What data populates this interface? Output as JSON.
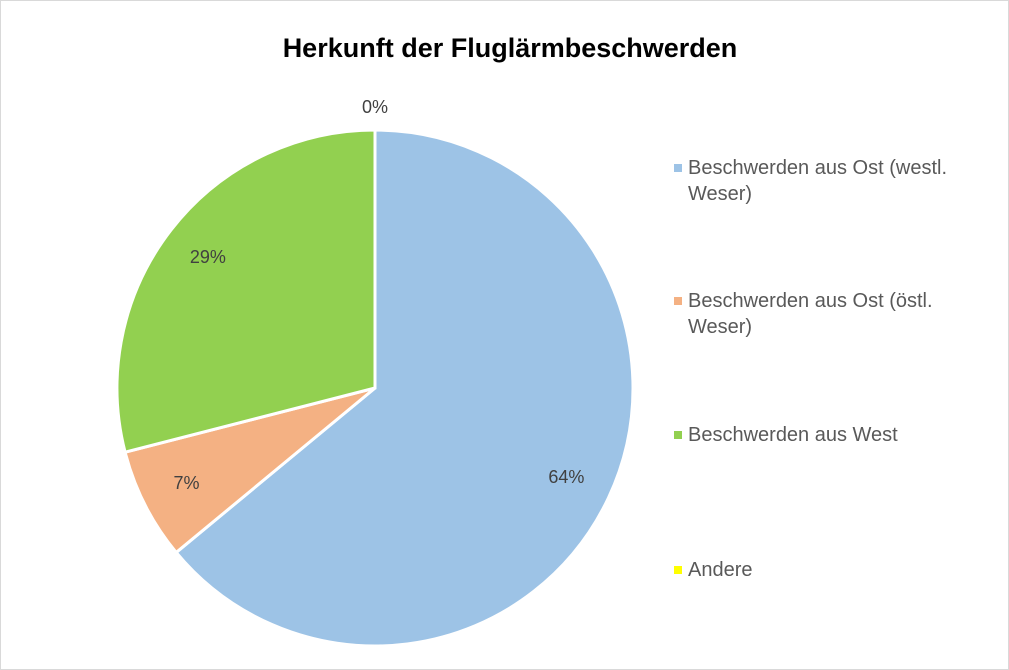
{
  "chart_data": {
    "type": "pie",
    "title": "Herkunft der Fluglärmbeschwerden",
    "categories": [
      "Beschwerden aus Ost (westl. Weser)",
      "Beschwerden aus Ost (östl. Weser)",
      "Beschwerden aus West",
      "Andere"
    ],
    "values": [
      64,
      7,
      29,
      0
    ],
    "value_labels": [
      "64%",
      "7%",
      "29%",
      "0%"
    ],
    "colors": [
      "#9dc3e6",
      "#f4b183",
      "#92d050",
      "#ffff00"
    ],
    "legend": "right"
  }
}
